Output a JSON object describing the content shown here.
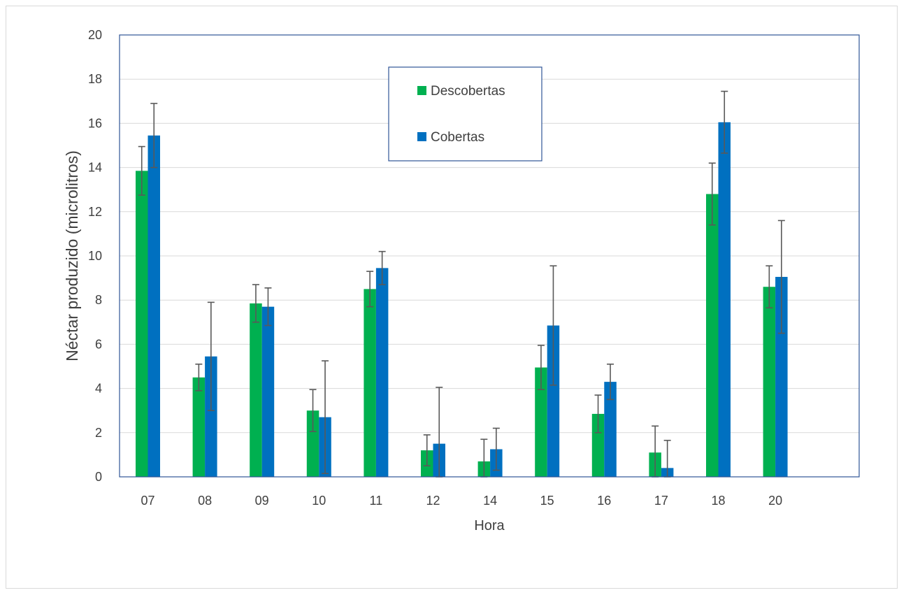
{
  "chart_data": {
    "type": "bar",
    "title": "",
    "xlabel": "Hora",
    "ylabel": "Néctar produzido (microlitros)",
    "ylim": [
      0,
      20
    ],
    "yticks": [
      0,
      2,
      4,
      6,
      8,
      10,
      12,
      14,
      16,
      18,
      20
    ],
    "grid": true,
    "legend_position": "top-center",
    "categories": [
      "07",
      "08",
      "09",
      "10",
      "11",
      "12",
      "14",
      "15",
      "16",
      "17",
      "18",
      "20"
    ],
    "series": [
      {
        "name": "Descobertas",
        "color": "#00b050",
        "values": [
          13.85,
          4.5,
          7.85,
          3.0,
          8.5,
          1.2,
          0.7,
          4.95,
          2.85,
          1.1,
          12.8,
          8.6
        ],
        "error": [
          1.1,
          0.6,
          0.85,
          0.95,
          0.8,
          0.7,
          1.0,
          1.0,
          0.85,
          1.2,
          1.4,
          0.95
        ]
      },
      {
        "name": "Cobertas",
        "color": "#0070c0",
        "values": [
          15.45,
          5.45,
          7.7,
          2.7,
          9.45,
          1.5,
          1.25,
          6.85,
          4.3,
          0.4,
          16.05,
          9.05
        ],
        "error": [
          1.45,
          2.45,
          0.85,
          2.55,
          0.75,
          2.55,
          0.95,
          2.7,
          0.8,
          1.25,
          1.4,
          2.55
        ]
      }
    ]
  }
}
